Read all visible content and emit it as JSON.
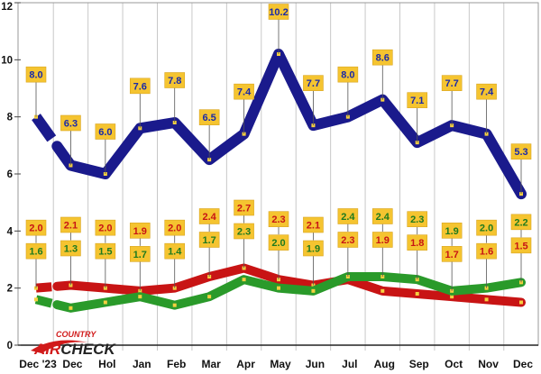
{
  "chart_data": {
    "type": "line",
    "categories": [
      "Dec '23",
      "Dec",
      "Hol",
      "Jan",
      "Feb",
      "Mar",
      "Apr",
      "May",
      "Jun",
      "Jul",
      "Aug",
      "Sep",
      "Oct",
      "Nov",
      "Dec"
    ],
    "ylim": [
      0,
      12
    ],
    "yticks": [
      0,
      2,
      4,
      6,
      8,
      10,
      12
    ],
    "grid": "vertical",
    "series": [
      {
        "name": "Blue series",
        "color": "#1a1a8c",
        "label_color": "#1a2aa8",
        "values": [
          8.0,
          6.3,
          6.0,
          7.6,
          7.8,
          6.5,
          7.4,
          10.2,
          7.7,
          8.0,
          8.6,
          7.1,
          7.7,
          7.4,
          5.3
        ],
        "labels": [
          "8.0",
          "6.3",
          "6.0",
          "7.6",
          "7.8",
          "6.5",
          "7.4",
          "10.2",
          "7.7",
          "8.0",
          "8.6",
          "7.1",
          "7.7",
          "7.4",
          "5.3"
        ]
      },
      {
        "name": "Red series",
        "color": "#c81414",
        "label_color": "#c81414",
        "values": [
          2.0,
          2.1,
          2.0,
          1.9,
          2.0,
          2.4,
          2.7,
          2.3,
          2.1,
          2.3,
          1.9,
          1.8,
          1.7,
          1.6,
          1.5
        ],
        "labels": [
          "2.0",
          "2.1",
          "2.0",
          "1.9",
          "2.0",
          "2.4",
          "2.7",
          "2.3",
          "2.1",
          "2.3",
          "1.9",
          "1.8",
          "1.7",
          "1.6",
          "1.5"
        ]
      },
      {
        "name": "Green series",
        "color": "#2a9a2a",
        "label_color": "#1e7a1e",
        "values": [
          1.6,
          1.3,
          1.5,
          1.7,
          1.4,
          1.7,
          2.3,
          2.0,
          1.9,
          2.4,
          2.4,
          2.3,
          1.9,
          2.0,
          2.2
        ],
        "labels": [
          "1.6",
          "1.3",
          "1.5",
          "1.7",
          "1.4",
          "1.7",
          "2.3",
          "2.0",
          "1.9",
          "2.4",
          "2.4",
          "2.3",
          "1.9",
          "2.0",
          "2.2"
        ]
      }
    ],
    "label_box_color": "#f5c430"
  },
  "logo": {
    "top_text": "COUNTRY",
    "main_left": "AIR",
    "main_right": "CHECK"
  }
}
